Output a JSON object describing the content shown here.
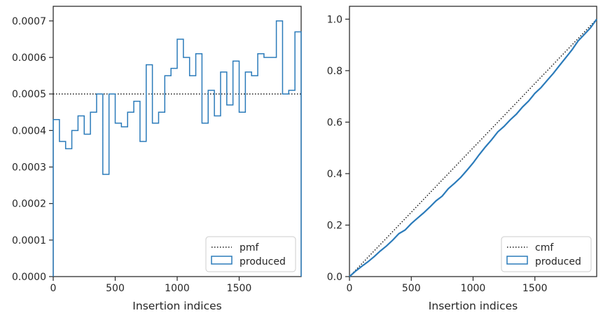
{
  "colors": {
    "series": "#2b7bba",
    "reference": "#1a1a1a",
    "axes": "#262626"
  },
  "chart_data": [
    {
      "type": "step-histogram",
      "xlabel": "Insertion indices",
      "ylabel": "",
      "xlim": [
        0,
        2000
      ],
      "ylim": [
        0,
        0.00074
      ],
      "xticks": [
        0,
        500,
        1000,
        1500
      ],
      "xtick_labels": [
        "0",
        "500",
        "1000",
        "1500"
      ],
      "yticks": [
        0,
        0.0001,
        0.0002,
        0.0003,
        0.0004,
        0.0005,
        0.0006,
        0.0007
      ],
      "ytick_labels": [
        "0.0000",
        "0.0001",
        "0.0002",
        "0.0003",
        "0.0004",
        "0.0005",
        "0.0006",
        "0.0007"
      ],
      "legend": {
        "placement": "lower-right",
        "entries": [
          "pmf",
          "produced"
        ]
      },
      "reference_line": {
        "name": "pmf",
        "y": 0.0005,
        "style": "dotted"
      },
      "bin_width": 50,
      "series": [
        {
          "name": "produced",
          "values": [
            0.00043,
            0.00037,
            0.00035,
            0.0004,
            0.00044,
            0.00039,
            0.00045,
            0.0005,
            0.00028,
            0.0005,
            0.00042,
            0.00041,
            0.00045,
            0.00048,
            0.00037,
            0.00058,
            0.00042,
            0.00045,
            0.00055,
            0.00057,
            0.00065,
            0.0006,
            0.00055,
            0.00061,
            0.00042,
            0.00051,
            0.00044,
            0.00056,
            0.00047,
            0.00059,
            0.00045,
            0.00056,
            0.00055,
            0.00061,
            0.0006,
            0.0006,
            0.0007,
            0.0005,
            0.00051,
            0.00067
          ]
        }
      ]
    },
    {
      "type": "step-cumulative",
      "xlabel": "Insertion indices",
      "ylabel": "",
      "xlim": [
        0,
        2000
      ],
      "ylim": [
        0,
        1.05
      ],
      "xticks": [
        0,
        500,
        1000,
        1500
      ],
      "xtick_labels": [
        "0",
        "500",
        "1000",
        "1500"
      ],
      "yticks": [
        0,
        0.2,
        0.4,
        0.6,
        0.8,
        1.0
      ],
      "ytick_labels": [
        "0.0",
        "0.2",
        "0.4",
        "0.6",
        "0.8",
        "1.0"
      ],
      "legend": {
        "placement": "lower-right",
        "entries": [
          "cmf",
          "produced"
        ]
      },
      "reference_line": {
        "name": "cmf",
        "from": [
          0,
          0
        ],
        "to": [
          2000,
          1.0
        ],
        "style": "dotted"
      },
      "series": [
        {
          "name": "produced",
          "cumulative_of": "chart_data.0.series.0.values"
        }
      ]
    }
  ]
}
